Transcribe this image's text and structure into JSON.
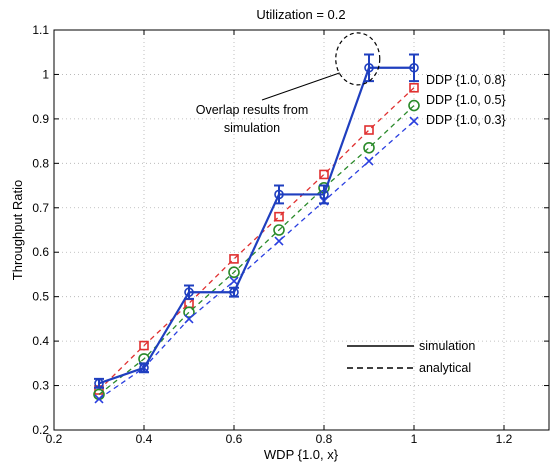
{
  "chart_data": {
    "type": "line",
    "title": "Utilization = 0.2",
    "xlabel": "WDP {1.0, x}",
    "ylabel": "Throughput Ratio",
    "xlim": [
      0.2,
      1.3
    ],
    "ylim": [
      0.2,
      1.1
    ],
    "x_ticks": [
      0.2,
      0.4,
      0.6,
      0.8,
      1,
      1.2
    ],
    "x_tick_labels": [
      "0.2",
      "0.4",
      "0.6",
      "0.8",
      "1",
      "1.2"
    ],
    "y_ticks": [
      0.2,
      0.3,
      0.4,
      0.5,
      0.6,
      0.7,
      0.8,
      0.9,
      1,
      1.1
    ],
    "y_tick_labels": [
      "0.2",
      "0.3",
      "0.4",
      "0.5",
      "0.6",
      "0.7",
      "0.8",
      "0.9",
      "1",
      "1.1"
    ],
    "grid": true,
    "x": [
      0.3,
      0.4,
      0.5,
      0.6,
      0.7,
      0.8,
      0.9,
      1.0
    ],
    "series": [
      {
        "name": "simulation",
        "style": "solid",
        "marker": "errorbar",
        "color": "#1f3fbf",
        "values": [
          0.305,
          0.34,
          0.51,
          0.51,
          0.73,
          0.73,
          1.015,
          1.015
        ],
        "errors": [
          0.01,
          0.01,
          0.015,
          0.01,
          0.02,
          0.02,
          0.03,
          0.03
        ]
      },
      {
        "name": "DDP {1.0, 0.8}",
        "style": "dashed",
        "marker": "square",
        "color": "#e03030",
        "values": [
          0.29,
          0.39,
          0.485,
          0.585,
          0.68,
          0.775,
          0.875,
          0.97
        ]
      },
      {
        "name": "DDP {1.0, 0.5}",
        "style": "dashed",
        "marker": "circle",
        "color": "#2a8a2a",
        "values": [
          0.28,
          0.36,
          0.465,
          0.555,
          0.65,
          0.745,
          0.835,
          0.93
        ]
      },
      {
        "name": "DDP {1.0, 0.3}",
        "style": "dashed",
        "marker": "x",
        "color": "#2a3fe0",
        "values": [
          0.27,
          0.34,
          0.45,
          0.535,
          0.625,
          0.715,
          0.805,
          0.895
        ]
      }
    ],
    "annotations": [
      {
        "text_lines": [
          "Overlap results from",
          "simulation"
        ],
        "target_x": 0.875,
        "target_y": 1.035
      }
    ],
    "legend": {
      "placement": "bottom-right",
      "entries": [
        {
          "label": "simulation",
          "style": "solid"
        },
        {
          "label": "analytical",
          "style": "dashed"
        }
      ]
    }
  }
}
